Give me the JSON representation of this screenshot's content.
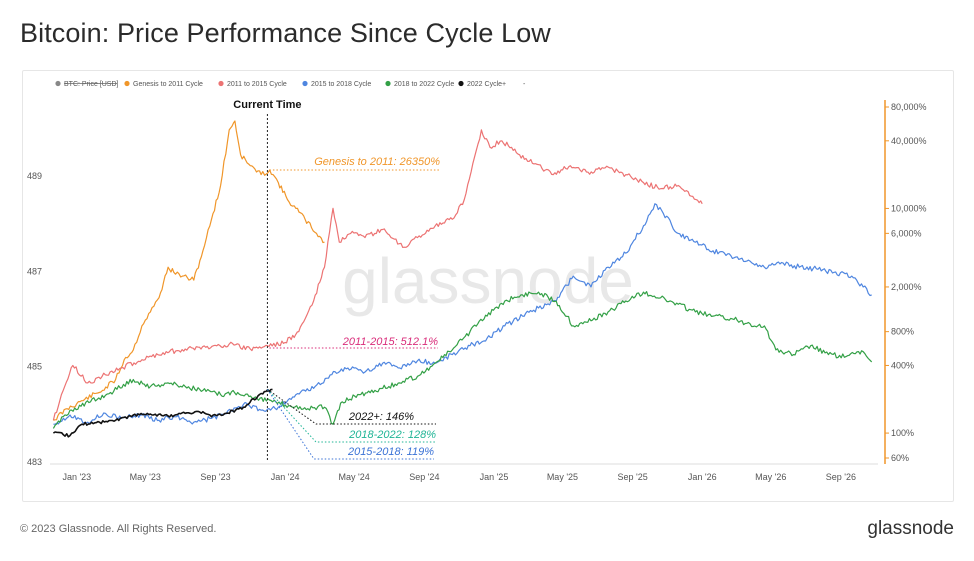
{
  "title": "Bitcoin: Price Performance Since Cycle Low",
  "footer": {
    "copyright": "© 2023 Glassnode. All Rights Reserved.",
    "brand": "glassnode"
  },
  "watermark": "glassnode",
  "chart_data": {
    "type": "line",
    "title": "Bitcoin: Price Performance Since Cycle Low",
    "x_tick_labels": [
      "Jan '23",
      "May '23",
      "Sep '23",
      "Jan '24",
      "May '24",
      "Sep '24",
      "Jan '25",
      "May '25",
      "Sep '25",
      "Jan '26",
      "May '26",
      "Sep '26"
    ],
    "y_left": {
      "ticks": [
        483,
        485,
        487,
        489
      ],
      "ylim": [
        483,
        490.6
      ]
    },
    "y_right": {
      "scale": "log",
      "ticks": [
        60,
        100,
        400,
        800,
        2000,
        6000,
        10000,
        40000,
        80000
      ],
      "tick_labels": [
        "60%",
        "100%",
        "400%",
        "800%",
        "2,000%",
        "6,000%",
        "10,000%",
        "40,000%",
        "80,000%"
      ],
      "color": "#f0962a"
    },
    "legend": [
      {
        "name": "BTC: Price [USD]",
        "color": "#888888",
        "struck": true
      },
      {
        "name": "Genesis to 2011 Cycle",
        "color": "#f0962a"
      },
      {
        "name": "2011 to 2015 Cycle",
        "color": "#ec7373"
      },
      {
        "name": "2015 to 2018 Cycle",
        "color": "#4f86e0"
      },
      {
        "name": "2018 to 2022 Cycle",
        "color": "#33a046"
      },
      {
        "name": "2022 Cycle+",
        "color": "#111111"
      },
      {
        "name": "-",
        "color": "#aaaaaa"
      }
    ],
    "series": [
      {
        "name": "Genesis to 2011 Cycle",
        "color": "#f0962a",
        "points": [
          [
            "2022-11-21",
            130
          ],
          [
            "2022-12-15",
            165
          ],
          [
            "2023-01-15",
            200
          ],
          [
            "2023-02-15",
            240
          ],
          [
            "2023-03-10",
            300
          ],
          [
            "2023-03-25",
            450
          ],
          [
            "2023-04-10",
            550
          ],
          [
            "2023-04-25",
            900
          ],
          [
            "2023-05-10",
            1200
          ],
          [
            "2023-05-25",
            1600
          ],
          [
            "2023-06-10",
            3000
          ],
          [
            "2023-06-20",
            2700
          ],
          [
            "2023-07-05",
            2500
          ],
          [
            "2023-07-25",
            2300
          ],
          [
            "2023-08-10",
            4200
          ],
          [
            "2023-08-25",
            8000
          ],
          [
            "2023-09-10",
            16000
          ],
          [
            "2023-09-25",
            50000
          ],
          [
            "2023-10-05",
            60000
          ],
          [
            "2023-10-15",
            30000
          ],
          [
            "2023-11-01",
            24000
          ],
          [
            "2023-11-20",
            20000
          ],
          [
            "2023-12-05",
            22000
          ],
          [
            "2023-12-20",
            17000
          ],
          [
            "2024-01-05",
            12000
          ],
          [
            "2024-01-20",
            10000
          ],
          [
            "2024-02-05",
            8000
          ],
          [
            "2024-02-25",
            6000
          ],
          [
            "2024-03-10",
            5000
          ]
        ]
      },
      {
        "name": "2011 to 2015 Cycle",
        "color": "#ec7373",
        "points": [
          [
            "2022-11-21",
            130
          ],
          [
            "2022-12-05",
            220
          ],
          [
            "2022-12-25",
            400
          ],
          [
            "2023-01-20",
            280
          ],
          [
            "2023-02-20",
            330
          ],
          [
            "2023-03-20",
            380
          ],
          [
            "2023-04-25",
            450
          ],
          [
            "2023-06-01",
            520
          ],
          [
            "2023-07-10",
            560
          ],
          [
            "2023-08-15",
            580
          ],
          [
            "2023-09-25",
            620
          ],
          [
            "2023-11-01",
            560
          ],
          [
            "2023-12-01",
            600
          ],
          [
            "2024-01-01",
            640
          ],
          [
            "2024-01-25",
            800
          ],
          [
            "2024-02-20",
            1500
          ],
          [
            "2024-03-10",
            3000
          ],
          [
            "2024-03-25",
            10000
          ],
          [
            "2024-04-05",
            5000
          ],
          [
            "2024-04-25",
            6000
          ],
          [
            "2024-05-20",
            5500
          ],
          [
            "2024-06-20",
            6500
          ],
          [
            "2024-07-25",
            4500
          ],
          [
            "2024-08-20",
            5500
          ],
          [
            "2024-09-20",
            7000
          ],
          [
            "2024-10-20",
            8000
          ],
          [
            "2024-11-10",
            12000
          ],
          [
            "2024-11-25",
            25000
          ],
          [
            "2024-12-10",
            50000
          ],
          [
            "2024-12-25",
            35000
          ],
          [
            "2025-01-15",
            40000
          ],
          [
            "2025-02-15",
            30000
          ],
          [
            "2025-03-15",
            25000
          ],
          [
            "2025-04-15",
            20000
          ],
          [
            "2025-05-15",
            24000
          ],
          [
            "2025-06-15",
            21000
          ],
          [
            "2025-07-15",
            23000
          ],
          [
            "2025-08-20",
            20000
          ],
          [
            "2025-09-20",
            17000
          ],
          [
            "2025-10-20",
            15000
          ],
          [
            "2025-11-20",
            16000
          ],
          [
            "2025-12-10",
            13000
          ],
          [
            "2026-01-01",
            11000
          ]
        ]
      },
      {
        "name": "2015 to 2018 Cycle",
        "color": "#4f86e0",
        "points": [
          [
            "2022-11-21",
            120
          ],
          [
            "2022-12-20",
            145
          ],
          [
            "2023-01-20",
            125
          ],
          [
            "2023-02-20",
            150
          ],
          [
            "2023-03-20",
            135
          ],
          [
            "2023-04-25",
            145
          ],
          [
            "2023-05-25",
            130
          ],
          [
            "2023-06-25",
            140
          ],
          [
            "2023-07-25",
            125
          ],
          [
            "2023-08-25",
            135
          ],
          [
            "2023-09-20",
            150
          ],
          [
            "2023-10-20",
            180
          ],
          [
            "2023-11-20",
            160
          ],
          [
            "2023-12-20",
            170
          ],
          [
            "2024-01-20",
            220
          ],
          [
            "2024-02-20",
            250
          ],
          [
            "2024-03-20",
            330
          ],
          [
            "2024-04-20",
            380
          ],
          [
            "2024-05-20",
            350
          ],
          [
            "2024-06-20",
            420
          ],
          [
            "2024-07-20",
            380
          ],
          [
            "2024-08-20",
            440
          ],
          [
            "2024-09-20",
            420
          ],
          [
            "2024-10-20",
            500
          ],
          [
            "2024-11-20",
            600
          ],
          [
            "2024-12-20",
            700
          ],
          [
            "2025-01-20",
            900
          ],
          [
            "2025-02-20",
            1100
          ],
          [
            "2025-03-20",
            1300
          ],
          [
            "2025-04-20",
            1500
          ],
          [
            "2025-05-20",
            2500
          ],
          [
            "2025-06-20",
            2000
          ],
          [
            "2025-07-20",
            3000
          ],
          [
            "2025-08-20",
            4000
          ],
          [
            "2025-09-20",
            7000
          ],
          [
            "2025-10-10",
            11000
          ],
          [
            "2025-10-25",
            9000
          ],
          [
            "2025-11-20",
            6000
          ],
          [
            "2025-12-20",
            5000
          ],
          [
            "2026-01-20",
            4200
          ],
          [
            "2026-02-20",
            3800
          ],
          [
            "2026-03-20",
            3400
          ],
          [
            "2026-04-20",
            3000
          ],
          [
            "2026-05-20",
            3300
          ],
          [
            "2026-06-20",
            3000
          ],
          [
            "2026-07-20",
            2900
          ],
          [
            "2026-08-20",
            2700
          ],
          [
            "2026-09-20",
            2500
          ],
          [
            "2026-10-10",
            2000
          ],
          [
            "2026-10-25",
            1700
          ]
        ]
      },
      {
        "name": "2018 to 2022 Cycle",
        "color": "#33a046",
        "points": [
          [
            "2022-11-21",
            110
          ],
          [
            "2022-12-20",
            160
          ],
          [
            "2023-01-25",
            190
          ],
          [
            "2023-03-01",
            230
          ],
          [
            "2023-04-10",
            300
          ],
          [
            "2023-05-10",
            260
          ],
          [
            "2023-06-10",
            280
          ],
          [
            "2023-07-10",
            260
          ],
          [
            "2023-08-10",
            240
          ],
          [
            "2023-09-10",
            220
          ],
          [
            "2023-10-10",
            230
          ],
          [
            "2023-11-10",
            210
          ],
          [
            "2023-12-10",
            190
          ],
          [
            "2024-01-10",
            175
          ],
          [
            "2024-02-10",
            165
          ],
          [
            "2024-03-10",
            170
          ],
          [
            "2024-03-25",
            120
          ],
          [
            "2024-04-10",
            190
          ],
          [
            "2024-05-10",
            220
          ],
          [
            "2024-06-20",
            250
          ],
          [
            "2024-07-20",
            280
          ],
          [
            "2024-08-20",
            320
          ],
          [
            "2024-09-20",
            420
          ],
          [
            "2024-10-20",
            550
          ],
          [
            "2024-11-20",
            800
          ],
          [
            "2024-12-20",
            1100
          ],
          [
            "2025-01-20",
            1500
          ],
          [
            "2025-02-20",
            1700
          ],
          [
            "2025-03-20",
            1800
          ],
          [
            "2025-04-20",
            1500
          ],
          [
            "2025-05-20",
            900
          ],
          [
            "2025-06-20",
            1000
          ],
          [
            "2025-07-20",
            1200
          ],
          [
            "2025-08-20",
            1500
          ],
          [
            "2025-09-20",
            1800
          ],
          [
            "2025-10-20",
            1600
          ],
          [
            "2025-11-20",
            1400
          ],
          [
            "2025-12-20",
            1200
          ],
          [
            "2026-01-20",
            1100
          ],
          [
            "2026-02-20",
            1050
          ],
          [
            "2026-03-20",
            950
          ],
          [
            "2026-04-20",
            900
          ],
          [
            "2026-05-10",
            550
          ],
          [
            "2026-06-10",
            500
          ],
          [
            "2026-07-10",
            600
          ],
          [
            "2026-08-10",
            500
          ],
          [
            "2026-09-10",
            480
          ],
          [
            "2026-10-10",
            530
          ],
          [
            "2026-10-25",
            430
          ]
        ]
      },
      {
        "name": "2022 Cycle+",
        "color": "#111111",
        "points": [
          [
            "2022-11-21",
            100
          ],
          [
            "2022-12-20",
            95
          ],
          [
            "2023-01-10",
            120
          ],
          [
            "2023-02-10",
            125
          ],
          [
            "2023-03-10",
            130
          ],
          [
            "2023-04-10",
            145
          ],
          [
            "2023-05-10",
            148
          ],
          [
            "2023-06-10",
            142
          ],
          [
            "2023-07-10",
            150
          ],
          [
            "2023-08-10",
            155
          ],
          [
            "2023-08-25",
            140
          ],
          [
            "2023-09-20",
            150
          ],
          [
            "2023-10-20",
            170
          ],
          [
            "2023-11-20",
            225
          ],
          [
            "2023-12-10",
            245
          ]
        ]
      }
    ],
    "annotations": [
      {
        "text": "Current Time",
        "x": "2023-12-01"
      },
      {
        "text": "Genesis to 2011: 26350%",
        "color": "#f0962a",
        "y": 26350
      },
      {
        "text": "2011-2015: 512.1%",
        "color": "#d92c7a",
        "y": 612
      },
      {
        "text": "2022+: 146%",
        "color": "#111111",
        "y": 246
      },
      {
        "text": "2018-2022: 128%",
        "color": "#20b596",
        "y": 228
      },
      {
        "text": "2015-2018: 119%",
        "color": "#3b73d6",
        "y": 219
      }
    ]
  }
}
